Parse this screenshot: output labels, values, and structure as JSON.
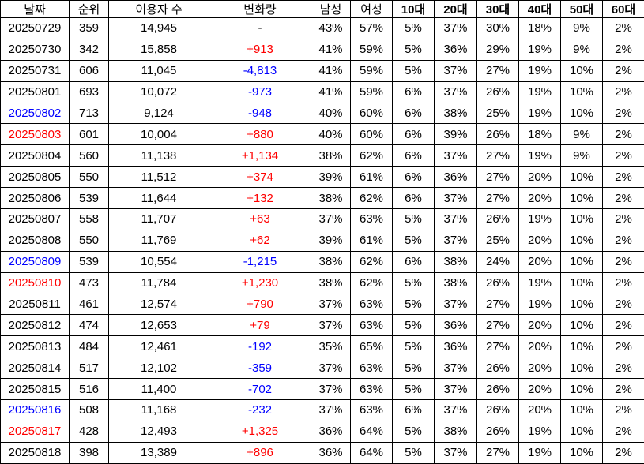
{
  "table": {
    "header": [
      "날짜",
      "순위",
      "이용자 수",
      "변화량",
      "남성",
      "여성",
      "10대",
      "20대",
      "30대",
      "40대",
      "50대",
      "60대"
    ],
    "rows": [
      [
        "20250729",
        "359",
        "14,945",
        "-",
        "43%",
        "57%",
        "5%",
        "37%",
        "30%",
        "18%",
        "9%",
        "2%"
      ],
      [
        "20250730",
        "342",
        "15,858",
        "+913",
        "41%",
        "59%",
        "5%",
        "36%",
        "29%",
        "19%",
        "9%",
        "2%"
      ],
      [
        "20250731",
        "606",
        "11,045",
        "-4,813",
        "41%",
        "59%",
        "5%",
        "37%",
        "27%",
        "19%",
        "10%",
        "2%"
      ],
      [
        "20250801",
        "693",
        "10,072",
        "-973",
        "41%",
        "59%",
        "6%",
        "37%",
        "26%",
        "19%",
        "10%",
        "2%"
      ],
      [
        "20250802",
        "713",
        "9,124",
        "-948",
        "40%",
        "60%",
        "6%",
        "38%",
        "25%",
        "19%",
        "10%",
        "2%"
      ],
      [
        "20250803",
        "601",
        "10,004",
        "+880",
        "40%",
        "60%",
        "6%",
        "39%",
        "26%",
        "18%",
        "9%",
        "2%"
      ],
      [
        "20250804",
        "560",
        "11,138",
        "+1,134",
        "38%",
        "62%",
        "6%",
        "37%",
        "27%",
        "19%",
        "9%",
        "2%"
      ],
      [
        "20250805",
        "550",
        "11,512",
        "+374",
        "39%",
        "61%",
        "6%",
        "36%",
        "27%",
        "20%",
        "10%",
        "2%"
      ],
      [
        "20250806",
        "539",
        "11,644",
        "+132",
        "38%",
        "62%",
        "6%",
        "37%",
        "27%",
        "20%",
        "10%",
        "2%"
      ],
      [
        "20250807",
        "558",
        "11,707",
        "+63",
        "37%",
        "63%",
        "5%",
        "37%",
        "26%",
        "19%",
        "10%",
        "2%"
      ],
      [
        "20250808",
        "550",
        "11,769",
        "+62",
        "39%",
        "61%",
        "5%",
        "37%",
        "25%",
        "20%",
        "10%",
        "2%"
      ],
      [
        "20250809",
        "539",
        "10,554",
        "-1,215",
        "38%",
        "62%",
        "6%",
        "38%",
        "24%",
        "20%",
        "10%",
        "2%"
      ],
      [
        "20250810",
        "473",
        "11,784",
        "+1,230",
        "38%",
        "62%",
        "5%",
        "38%",
        "26%",
        "19%",
        "10%",
        "2%"
      ],
      [
        "20250811",
        "461",
        "12,574",
        "+790",
        "37%",
        "63%",
        "5%",
        "37%",
        "27%",
        "19%",
        "10%",
        "2%"
      ],
      [
        "20250812",
        "474",
        "12,653",
        "+79",
        "37%",
        "63%",
        "5%",
        "36%",
        "27%",
        "20%",
        "10%",
        "2%"
      ],
      [
        "20250813",
        "484",
        "12,461",
        "-192",
        "35%",
        "65%",
        "5%",
        "36%",
        "27%",
        "20%",
        "10%",
        "2%"
      ],
      [
        "20250814",
        "517",
        "12,102",
        "-359",
        "37%",
        "63%",
        "5%",
        "37%",
        "26%",
        "20%",
        "10%",
        "2%"
      ],
      [
        "20250815",
        "516",
        "11,400",
        "-702",
        "37%",
        "63%",
        "5%",
        "37%",
        "26%",
        "20%",
        "10%",
        "2%"
      ],
      [
        "20250816",
        "508",
        "11,168",
        "-232",
        "37%",
        "63%",
        "6%",
        "37%",
        "26%",
        "20%",
        "10%",
        "2%"
      ],
      [
        "20250817",
        "428",
        "12,493",
        "+1,325",
        "36%",
        "64%",
        "5%",
        "38%",
        "26%",
        "19%",
        "10%",
        "2%"
      ],
      [
        "20250818",
        "398",
        "13,389",
        "+896",
        "36%",
        "64%",
        "5%",
        "37%",
        "27%",
        "19%",
        "10%",
        "2%"
      ]
    ]
  }
}
